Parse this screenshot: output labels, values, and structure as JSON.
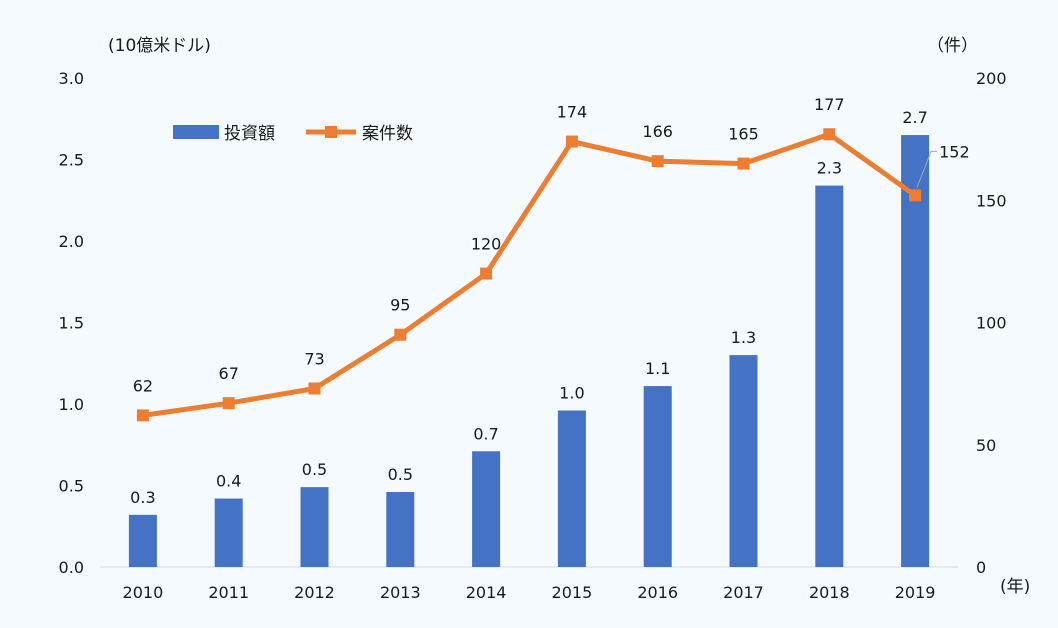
{
  "chart_data": {
    "type": "bar",
    "categories": [
      "2010",
      "2011",
      "2012",
      "2013",
      "2014",
      "2015",
      "2016",
      "2017",
      "2018",
      "2019"
    ],
    "series": [
      {
        "name": "投資額",
        "type": "bar",
        "axis": "left",
        "values": [
          0.32,
          0.42,
          0.49,
          0.46,
          0.71,
          0.96,
          1.11,
          1.3,
          2.34,
          2.65
        ],
        "labels": [
          "0.3",
          "0.4",
          "0.5",
          "0.5",
          "0.7",
          "1.0",
          "1.1",
          "1.3",
          "2.3",
          "2.7"
        ],
        "color": "#4472c4"
      },
      {
        "name": "案件数",
        "type": "line",
        "axis": "right",
        "values": [
          62,
          67,
          73,
          95,
          120,
          174,
          166,
          165,
          177,
          152
        ],
        "labels": [
          "62",
          "67",
          "73",
          "95",
          "120",
          "174",
          "166",
          "165",
          "177",
          "152"
        ],
        "color": "#ed7d31"
      }
    ],
    "ylabel_left": "(10億米ドル)",
    "ylabel_right": "（件）",
    "xlabel": "(年)",
    "ylim_left": [
      0,
      3.0
    ],
    "ylim_right": [
      0,
      200
    ],
    "yticks_left": [
      "0.0",
      "0.5",
      "1.0",
      "1.5",
      "2.0",
      "2.5",
      "3.0"
    ],
    "yticks_right": [
      "0",
      "50",
      "100",
      "150",
      "200"
    ],
    "grid": false,
    "legend_position": "top-left"
  }
}
